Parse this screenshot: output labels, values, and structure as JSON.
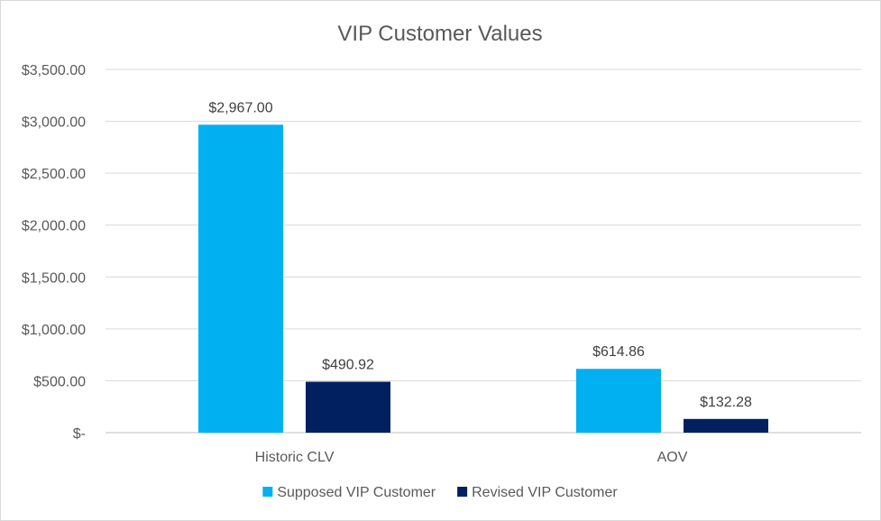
{
  "chart_data": {
    "type": "bar",
    "title": "VIP Customer Values",
    "categories": [
      "Historic CLV",
      "AOV"
    ],
    "series": [
      {
        "name": "Supposed VIP Customer",
        "color": "#00b0f0",
        "values": [
          2967.0,
          614.86
        ],
        "labels": [
          "$2,967.00",
          "$614.86"
        ]
      },
      {
        "name": "Revised VIP Customer",
        "color": "#002060",
        "values": [
          490.92,
          132.28
        ],
        "labels": [
          "$490.92",
          "$132.28"
        ]
      }
    ],
    "ylim": [
      0,
      3500
    ],
    "yticks": [
      0,
      500,
      1000,
      1500,
      2000,
      2500,
      3000,
      3500
    ],
    "ytick_labels": [
      "$-",
      "$500.00",
      "$1,000.00",
      "$1,500.00",
      "$2,000.00",
      "$2,500.00",
      "$3,000.00",
      "$3,500.00"
    ],
    "grid": true,
    "legend_position": "bottom",
    "colors": {
      "grid": "#d9d9d9",
      "axis": "#bfbfbf"
    }
  }
}
